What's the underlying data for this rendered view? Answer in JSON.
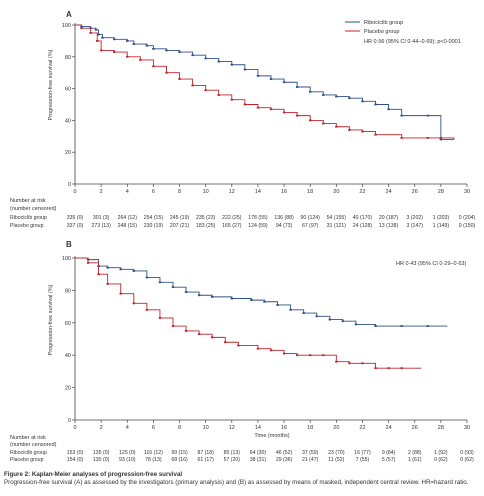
{
  "chart_data": [
    {
      "type": "line",
      "panel_label": "A",
      "xlabel": "",
      "ylabel": "Progression-free survival (%)",
      "xlim": [
        0,
        30
      ],
      "ylim": [
        0,
        100
      ],
      "xticks": [
        0,
        2,
        4,
        6,
        8,
        10,
        12,
        14,
        16,
        18,
        20,
        22,
        24,
        26,
        28,
        30
      ],
      "yticks": [
        0,
        20,
        40,
        60,
        80,
        100
      ],
      "legend_position": "top-right",
      "annotation": "HR 0·56 (95% CI 0·44–0·69); p<0·0001",
      "series": [
        {
          "name": "Ribociclib group",
          "color": "#2d4f8a",
          "points": [
            [
              0,
              100
            ],
            [
              0.5,
              99
            ],
            [
              1.2,
              98
            ],
            [
              1.6,
              97
            ],
            [
              1.8,
              94
            ],
            [
              2.1,
              92
            ],
            [
              3,
              91
            ],
            [
              4,
              90
            ],
            [
              4.5,
              88
            ],
            [
              5.5,
              87
            ],
            [
              6,
              85
            ],
            [
              7,
              84
            ],
            [
              8,
              83
            ],
            [
              9,
              81
            ],
            [
              10,
              79
            ],
            [
              11,
              77
            ],
            [
              12,
              75
            ],
            [
              13,
              72
            ],
            [
              14,
              68
            ],
            [
              15,
              66
            ],
            [
              16,
              64
            ],
            [
              17,
              61
            ],
            [
              18,
              58
            ],
            [
              19,
              56
            ],
            [
              20,
              55
            ],
            [
              21,
              54
            ],
            [
              22,
              52
            ],
            [
              23,
              50
            ],
            [
              24,
              47
            ],
            [
              25,
              43
            ],
            [
              27,
              43
            ],
            [
              28,
              28
            ],
            [
              29,
              29
            ]
          ]
        },
        {
          "name": "Placebo group",
          "color": "#c0232b",
          "points": [
            [
              0,
              100
            ],
            [
              0.5,
              98
            ],
            [
              1.2,
              95
            ],
            [
              1.7,
              90
            ],
            [
              2,
              84
            ],
            [
              3,
              83
            ],
            [
              4,
              80
            ],
            [
              5,
              78
            ],
            [
              6,
              74
            ],
            [
              7,
              70
            ],
            [
              8,
              66
            ],
            [
              9,
              62
            ],
            [
              10,
              59
            ],
            [
              11,
              56
            ],
            [
              12,
              53
            ],
            [
              13,
              50
            ],
            [
              14,
              48
            ],
            [
              15,
              47
            ],
            [
              16,
              45
            ],
            [
              17,
              43
            ],
            [
              18,
              40
            ],
            [
              19,
              38
            ],
            [
              20,
              36
            ],
            [
              21,
              34
            ],
            [
              22,
              33
            ],
            [
              23,
              31
            ],
            [
              25,
              29
            ],
            [
              27,
              29
            ],
            [
              28,
              29
            ],
            [
              29,
              29
            ]
          ]
        }
      ],
      "risk_table": {
        "title": "Number at risk (number censored)",
        "rows": [
          {
            "group": "Ribociclib group",
            "values": [
              "335 (0)",
              "301 (3)",
              "264 (12)",
              "254 (15)",
              "245 (19)",
              "235 (23)",
              "222 (25)",
              "178 (55)",
              "136 (88)",
              "90 (124)",
              "54 (155)",
              "40 (170)",
              "20 (187)",
              "3 (202)",
              "1 (203)",
              "0 (204)"
            ]
          },
          {
            "group": "Placebo group",
            "values": [
              "337 (0)",
              "273 (13)",
              "248 (15)",
              "230 (19)",
              "207 (21)",
              "183 (25)",
              "165 (27)",
              "124 (59)",
              "94 (73)",
              "67 (97)",
              "31 (121)",
              "24 (128)",
              "13 (138)",
              "3 (147)",
              "1 (149)",
              "0 (150)"
            ]
          }
        ]
      }
    },
    {
      "type": "line",
      "panel_label": "B",
      "xlabel": "Time (months)",
      "ylabel": "Progression-free survival (%)",
      "xlim": [
        0,
        30
      ],
      "ylim": [
        0,
        100
      ],
      "xticks": [
        0,
        2,
        4,
        6,
        8,
        10,
        12,
        14,
        16,
        18,
        20,
        22,
        24,
        26,
        28,
        30
      ],
      "yticks": [
        0,
        20,
        40,
        60,
        80,
        100
      ],
      "annotation": "HR 0·43 (95% CI 0·29–0·63)",
      "series": [
        {
          "name": "Ribociclib group",
          "color": "#2d4f8a",
          "points": [
            [
              0,
              100
            ],
            [
              1,
              99
            ],
            [
              1.8,
              95
            ],
            [
              2.5,
              94
            ],
            [
              3.5,
              93
            ],
            [
              4.5,
              92
            ],
            [
              5.5,
              88
            ],
            [
              6.5,
              85
            ],
            [
              7.5,
              82
            ],
            [
              8.5,
              79
            ],
            [
              9.5,
              77
            ],
            [
              10.5,
              76
            ],
            [
              12,
              75
            ],
            [
              13.5,
              74
            ],
            [
              14.5,
              73
            ],
            [
              15.5,
              71
            ],
            [
              16.5,
              68
            ],
            [
              17.5,
              66
            ],
            [
              18.5,
              64
            ],
            [
              19.5,
              62
            ],
            [
              20.5,
              61
            ],
            [
              21.5,
              59
            ],
            [
              23,
              58
            ],
            [
              25,
              58
            ],
            [
              27,
              58
            ],
            [
              28.5,
              58
            ]
          ]
        },
        {
          "name": "Placebo group",
          "color": "#c0232b",
          "points": [
            [
              0,
              100
            ],
            [
              1,
              97
            ],
            [
              1.8,
              90
            ],
            [
              2.5,
              84
            ],
            [
              3.5,
              78
            ],
            [
              4.5,
              72
            ],
            [
              5.5,
              68
            ],
            [
              6.5,
              63
            ],
            [
              7.5,
              58
            ],
            [
              8.5,
              55
            ],
            [
              9.5,
              53
            ],
            [
              10.5,
              51
            ],
            [
              11.5,
              48
            ],
            [
              12.5,
              46
            ],
            [
              14,
              44
            ],
            [
              15,
              43
            ],
            [
              16,
              41
            ],
            [
              17,
              40
            ],
            [
              18,
              40
            ],
            [
              19,
              40
            ],
            [
              20,
              36
            ],
            [
              21,
              35
            ],
            [
              22,
              35
            ],
            [
              23,
              32
            ],
            [
              24,
              32
            ],
            [
              25,
              32
            ],
            [
              26.5,
              32
            ]
          ]
        }
      ],
      "risk_table": {
        "title": "Number at risk (number censored)",
        "rows": [
          {
            "group": "Ribociclib group",
            "values": [
              "153 (0)",
              "135 (0)",
              "125 (0)",
              "116 (12)",
              "99 (15)",
              "87 (18)",
              "85 (13)",
              "64 (30)",
              "46 (52)",
              "37 (59)",
              "23 (70)",
              "16 (77)",
              "9 (84)",
              "2 (88)",
              "1 (92)",
              "0 (93)"
            ]
          },
          {
            "group": "Placebo group",
            "values": [
              "154 (0)",
              "130 (0)",
              "93 (10)",
              "78 (13)",
              "68 (16)",
              "61 (17)",
              "57 (20)",
              "38 (31)",
              "29 (36)",
              "21 (47)",
              "11 (52)",
              "7 (55)",
              "5 (57)",
              "1 (61)",
              "0 (62)",
              "0 (62)"
            ]
          }
        ]
      }
    }
  ],
  "caption": {
    "title": "Figure 2: Kaplan-Meier analyses of progression-free survival",
    "text": "Progression-free survival (A) as assessed by the investigators (primary analysis) and (B) as assessed by means of masked, independent central review. HR=hazard ratio."
  }
}
